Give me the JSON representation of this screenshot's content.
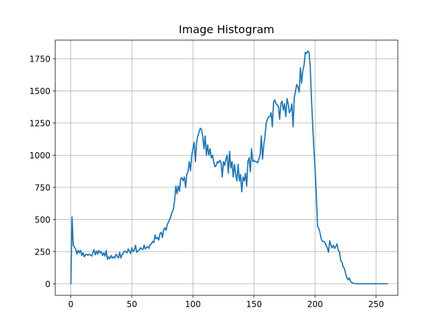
{
  "chart_data": {
    "type": "line",
    "title": "Image Histogram",
    "xlabel": "",
    "ylabel": "",
    "xlim": [
      -12.75,
      267.75
    ],
    "ylim": [
      -90,
      1895
    ],
    "x_ticks": [
      0,
      50,
      100,
      150,
      200,
      250
    ],
    "y_ticks": [
      0,
      250,
      500,
      750,
      1000,
      1250,
      1500,
      1750
    ],
    "grid": true,
    "legend": "none",
    "colors": {
      "line": "#1f77b4",
      "grid": "#b0b0b0",
      "axes": "#000000"
    },
    "series": [
      {
        "x_start": 0,
        "x_step": 1,
        "values": [
          0,
          520,
          300,
          285,
          270,
          230,
          260,
          240,
          260,
          220,
          240,
          210,
          225,
          230,
          220,
          230,
          225,
          215,
          240,
          265,
          225,
          255,
          230,
          260,
          240,
          250,
          220,
          240,
          215,
          260,
          190,
          210,
          195,
          220,
          200,
          210,
          200,
          230,
          215,
          200,
          245,
          200,
          225,
          240,
          255,
          250,
          240,
          270,
          255,
          235,
          280,
          250,
          260,
          300,
          245,
          255,
          260,
          280,
          270,
          265,
          300,
          270,
          285,
          290,
          275,
          305,
          310,
          330,
          320,
          380,
          350,
          360,
          340,
          390,
          400,
          360,
          420,
          435,
          415,
          460,
          480,
          500,
          530,
          560,
          580,
          650,
          760,
          700,
          760,
          720,
          820,
          825,
          800,
          830,
          750,
          850,
          875,
          950,
          880,
          1000,
          1050,
          1100,
          950,
          1100,
          1150,
          1180,
          1210,
          1200,
          1150,
          1050,
          1150,
          1000,
          1080,
          1000,
          1050,
          980,
          1000,
          950,
          910,
          920,
          950,
          940,
          960,
          945,
          830,
          950,
          920,
          970,
          1000,
          860,
          1030,
          900,
          950,
          830,
          930,
          850,
          800,
          930,
          800,
          850,
          715,
          830,
          800,
          860,
          760,
          950,
          980,
          870,
          1050,
          950,
          960,
          950,
          950,
          940,
          970,
          1000,
          1150,
          970,
          1080,
          1150,
          1250,
          1280,
          1300,
          1300,
          1330,
          1220,
          1410,
          1430,
          1400,
          1390,
          1380,
          1280,
          1400,
          1420,
          1350,
          1400,
          1300,
          1440,
          1400,
          1330,
          1350,
          1400,
          1220,
          1450,
          1500,
          1550,
          1530,
          1490,
          1680,
          1560,
          1660,
          1700,
          1800,
          1790,
          1810,
          1800,
          1700,
          1450,
          1250,
          1050,
          900,
          700,
          450,
          430,
          400,
          350,
          330,
          330,
          320,
          300,
          280,
          245,
          335,
          300,
          280,
          300,
          275,
          290,
          310,
          260,
          250,
          180,
          170,
          130,
          120,
          80,
          50,
          30,
          45,
          20,
          10,
          5,
          3,
          2,
          1,
          0,
          0,
          0,
          0,
          0,
          0,
          0,
          0,
          0,
          0,
          0,
          0,
          0,
          0,
          0,
          0,
          0,
          0,
          0,
          0,
          0,
          0,
          0,
          0,
          0
        ]
      }
    ]
  }
}
